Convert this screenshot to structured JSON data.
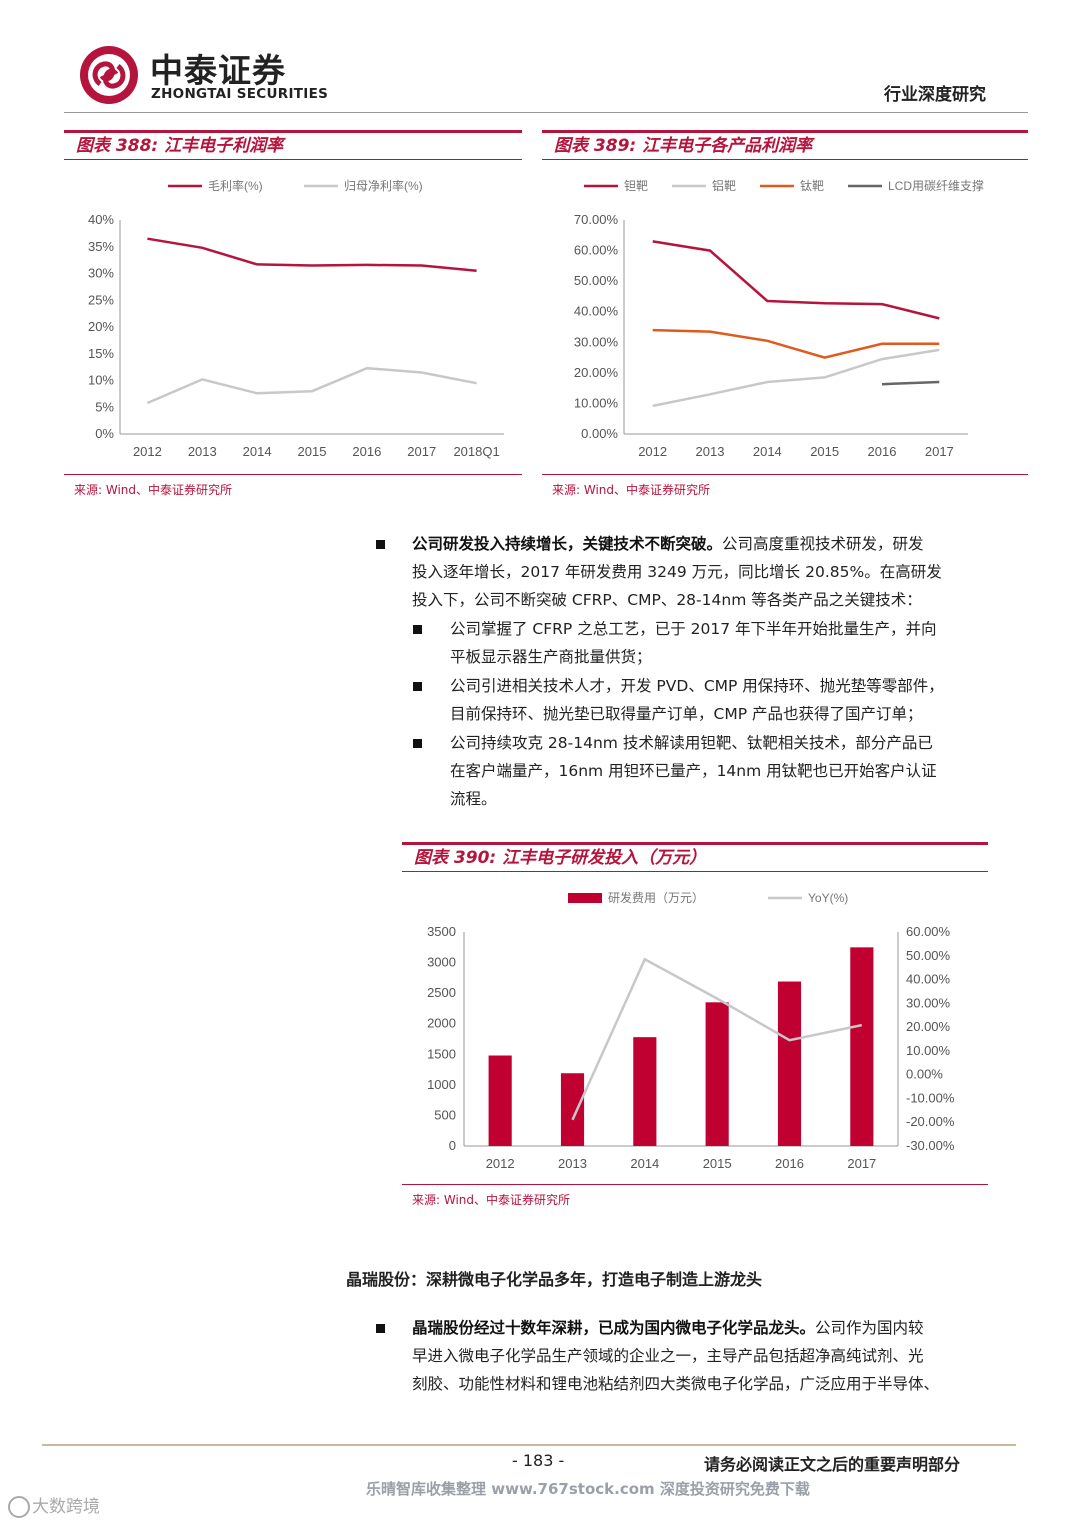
{
  "header": {
    "brand_cn": "中泰证券",
    "brand_en": "ZHONGTAI SECURITIES",
    "report_type": "行业深度研究",
    "brand_color": "#b5143c"
  },
  "figures": {
    "fig388": {
      "title": "图表 388: 江丰电子利润率",
      "source": "来源: Wind、中泰证券研究所"
    },
    "fig389": {
      "title": "图表 389: 江丰电子各产品利润率",
      "source": "来源: Wind、中泰证券研究所"
    },
    "fig390": {
      "title": "图表 390: 江丰电子研发投入（万元）",
      "source": "来源: Wind、中泰证券研究所"
    }
  },
  "body": {
    "p1_bold": "公司研发投入持续增长，关键技术不断突破。",
    "p1_line1_rest": "公司高度重视技术研发，研发",
    "p1_line2": "投入逐年增长，2017 年研发费用 3249 万元，同比增长 20.85%。在高研发",
    "p1_line3": "投入下，公司不断突破 CFRP、CMP、28-14nm 等各类产品之关键技术：",
    "sub1_line1": "公司掌握了 CFRP 之总工艺，已于 2017 年下半年开始批量生产，并向",
    "sub1_line2": "平板显示器生产商批量供货；",
    "sub2_line1": "公司引进相关技术人才，开发 PVD、CMP 用保持环、抛光垫等零部件，",
    "sub2_line2": "目前保持环、抛光垫已取得量产订单，CMP 产品也获得了国产订单；",
    "sub3_line1": "公司持续攻克 28-14nm 技术解读用钽靶、钛靶相关技术，部分产品已",
    "sub3_line2": "在客户端量产，16nm 用钽环已量产，14nm 用钛靶也已开始客户认证",
    "sub3_line3": "流程。",
    "section_heading": "晶瑞股份：深耕微电子化学品多年，打造电子制造上游龙头",
    "p2_bold": "晶瑞股份经过十数年深耕，已成为国内微电子化学品龙头。",
    "p2_line1_rest": "公司作为国内较",
    "p2_line2": "早进入微电子化学品生产领域的企业之一，主导产品包括超净高纯试剂、光",
    "p2_line3": "刻胶、功能性材料和锂电池粘结剂四大类微电子化学品，广泛应用于半导体、"
  },
  "footer": {
    "page_number": "- 183 -",
    "disclaimer": "请务必阅读正文之后的重要声明部分",
    "watermark": "乐晴智库收集整理 www.767stock.com 深度投资研究免费下载",
    "corner_mark": "大数跨境"
  },
  "chart_data": [
    {
      "id": "fig388",
      "type": "line",
      "categories": [
        "2012",
        "2013",
        "2014",
        "2015",
        "2016",
        "2017",
        "2018Q1"
      ],
      "series": [
        {
          "name": "毛利率(%)",
          "color": "#b5143c",
          "values": [
            36.5,
            34.8,
            31.7,
            31.5,
            31.6,
            31.5,
            30.5
          ]
        },
        {
          "name": "归母净利率(%)",
          "color": "#c8c8c8",
          "values": [
            5.8,
            10.2,
            7.6,
            8.0,
            12.3,
            11.5,
            9.5
          ]
        }
      ],
      "yticks": [
        "0%",
        "5%",
        "10%",
        "15%",
        "20%",
        "25%",
        "30%",
        "35%",
        "40%"
      ],
      "ylim": [
        0,
        40
      ],
      "legend": "top"
    },
    {
      "id": "fig389",
      "type": "line",
      "categories": [
        "2012",
        "2013",
        "2014",
        "2015",
        "2016",
        "2017"
      ],
      "series": [
        {
          "name": "钽靶",
          "color": "#b5143c",
          "values": [
            63.0,
            60.0,
            43.5,
            42.8,
            42.5,
            37.8
          ]
        },
        {
          "name": "铝靶",
          "color": "#c8c8c8",
          "values": [
            9.2,
            13.0,
            17.0,
            18.5,
            24.5,
            27.5
          ]
        },
        {
          "name": "钛靶",
          "color": "#e05a1e",
          "values": [
            34.0,
            33.5,
            30.5,
            25.0,
            29.5,
            29.5
          ]
        },
        {
          "name": "LCD用碳纤维支撑",
          "color": "#666666",
          "values": [
            null,
            null,
            null,
            null,
            16.3,
            17.0
          ]
        }
      ],
      "yticks": [
        "0.00%",
        "10.00%",
        "20.00%",
        "30.00%",
        "40.00%",
        "50.00%",
        "60.00%",
        "70.00%"
      ],
      "ylim": [
        0,
        70
      ],
      "legend": "top"
    },
    {
      "id": "fig390",
      "type": "bar",
      "categories": [
        "2012",
        "2013",
        "2014",
        "2015",
        "2016",
        "2017"
      ],
      "series": [
        {
          "name": "研发费用（万元）",
          "color": "#c00030",
          "type": "bar",
          "axis": "left",
          "values": [
            1480,
            1190,
            1780,
            2350,
            2690,
            3249
          ]
        },
        {
          "name": "YoY(%)",
          "color": "#c8c8c8",
          "type": "line",
          "axis": "right",
          "values": [
            null,
            -19.0,
            48.5,
            32.0,
            14.5,
            20.85
          ]
        }
      ],
      "yticks_left": [
        "0",
        "500",
        "1000",
        "1500",
        "2000",
        "2500",
        "3000",
        "3500"
      ],
      "ylim_left": [
        0,
        3500
      ],
      "yticks_right": [
        "-30.00%",
        "-20.00%",
        "-10.00%",
        "0.00%",
        "10.00%",
        "20.00%",
        "30.00%",
        "40.00%",
        "50.00%",
        "60.00%"
      ],
      "ylim_right": [
        -30,
        60
      ],
      "legend": "top"
    }
  ]
}
